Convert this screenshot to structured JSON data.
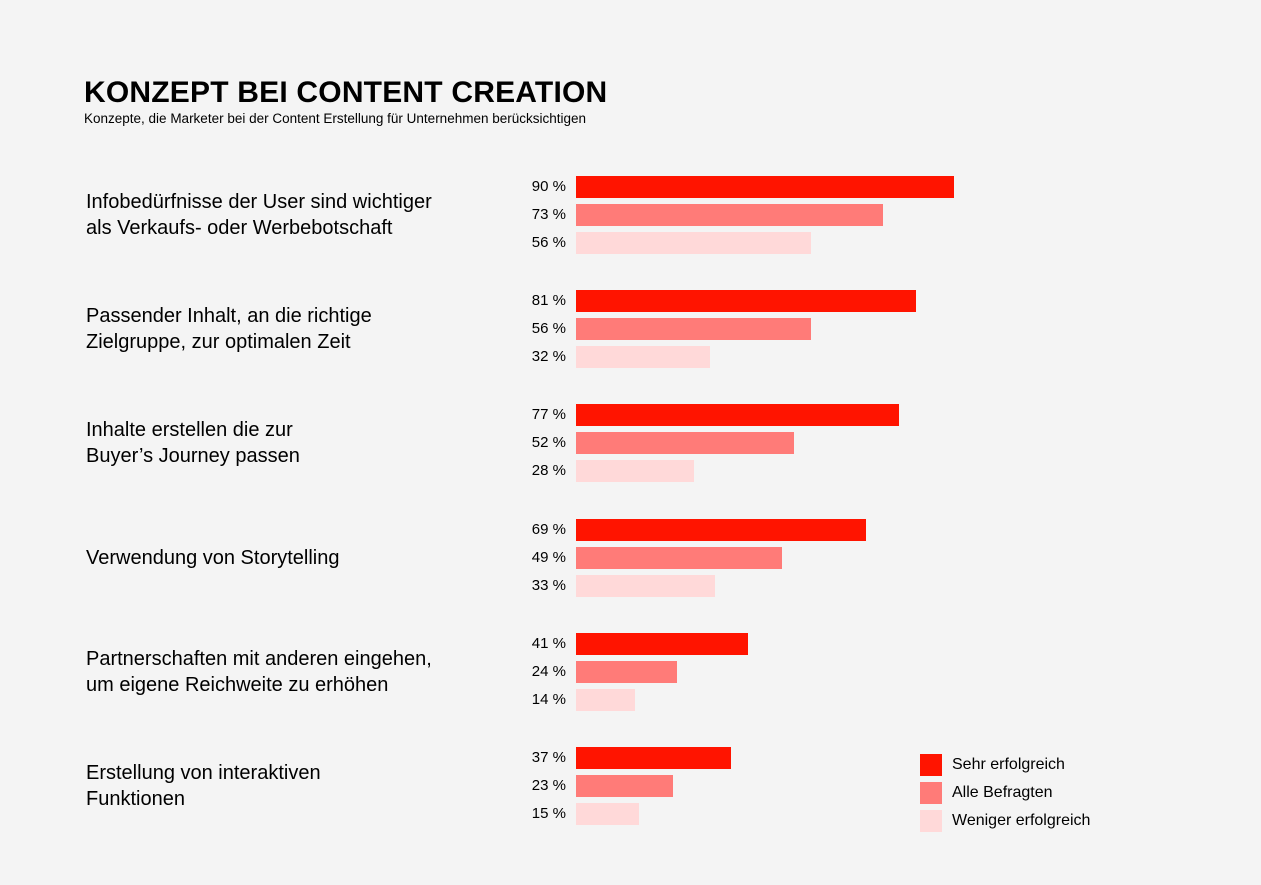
{
  "title": "KONZEPT BEI CONTENT CREATION",
  "subtitle": "Konzepte, die Marketer bei der Content Erstellung für Unternehmen berücksichtigen",
  "chart_data": {
    "type": "bar",
    "orientation": "horizontal",
    "categories": [
      "Infobedürfnisse der User sind wichtiger\nals Verkaufs- oder Werbebotschaft",
      "Passender Inhalt, an die richtige\nZielgruppe, zur optimalen Zeit",
      "Inhalte erstellen die zur\nBuyer’s Journey passen",
      "Verwendung von Storytelling",
      "Partnerschaften mit anderen eingehen,\num eigene Reichweite zu erhöhen",
      "Erstellung von interaktiven\nFunktionen"
    ],
    "series": [
      {
        "name": "Sehr erfolgreich",
        "color": "#ff1400",
        "values": [
          90,
          81,
          77,
          69,
          41,
          37
        ],
        "labels": [
          "90 %",
          "81 %",
          "77 %",
          "69 %",
          "41 %",
          "37 %"
        ]
      },
      {
        "name": "Alle Befragten",
        "color": "#ff7b78",
        "values": [
          73,
          56,
          52,
          49,
          24,
          23
        ],
        "labels": [
          "73 %",
          "56 %",
          "52 %",
          "49 %",
          "24 %",
          "23 %"
        ]
      },
      {
        "name": "Weniger erfolgreich",
        "color": "#ffd9d9",
        "values": [
          56,
          32,
          28,
          33,
          14,
          15
        ],
        "labels": [
          "56 %",
          "32 %",
          "28 %",
          "33 %",
          "14 %",
          "15 %"
        ]
      }
    ],
    "xlim": [
      0,
      100
    ],
    "grid": false,
    "legend_position": "bottom-right"
  }
}
